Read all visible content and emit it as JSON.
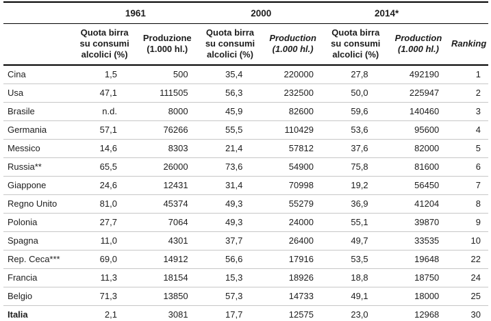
{
  "table": {
    "year_groups": [
      {
        "label": "1961"
      },
      {
        "label": "2000"
      },
      {
        "label": "2014*"
      }
    ],
    "columns": [
      {
        "label": "Quota birra su consumi alcolici (%)",
        "italic": false
      },
      {
        "label": "Produzione (1.000 hl.)",
        "italic": false
      },
      {
        "label": "Quota birra su consumi alcolici (%)",
        "italic": false
      },
      {
        "label": "Production (1.000 hl.)",
        "italic": true
      },
      {
        "label": "Quota birra su consumi alcolici (%)",
        "italic": false
      },
      {
        "label": "Production (1.000 hl.)",
        "italic": true
      },
      {
        "label": "Ranking",
        "italic": true
      }
    ],
    "rows": [
      {
        "country": "Cina",
        "bold": false,
        "values": [
          "1,5",
          "500",
          "35,4",
          "220000",
          "27,8",
          "492190",
          "1"
        ]
      },
      {
        "country": "Usa",
        "bold": false,
        "values": [
          "47,1",
          "111505",
          "56,3",
          "232500",
          "50,0",
          "225947",
          "2"
        ]
      },
      {
        "country": "Brasile",
        "bold": false,
        "values": [
          "n.d.",
          "8000",
          "45,9",
          "82600",
          "59,6",
          "140460",
          "3"
        ]
      },
      {
        "country": "Germania",
        "bold": false,
        "values": [
          "57,1",
          "76266",
          "55,5",
          "110429",
          "53,6",
          "95600",
          "4"
        ]
      },
      {
        "country": "Messico",
        "bold": false,
        "values": [
          "14,6",
          "8303",
          "21,4",
          "57812",
          "37,6",
          "82000",
          "5"
        ]
      },
      {
        "country": "Russia**",
        "bold": false,
        "values": [
          "65,5",
          "26000",
          "73,6",
          "54900",
          "75,8",
          "81600",
          "6"
        ]
      },
      {
        "country": "Giappone",
        "bold": false,
        "values": [
          "24,6",
          "12431",
          "31,4",
          "70998",
          "19,2",
          "56450",
          "7"
        ]
      },
      {
        "country": "Regno Unito",
        "bold": false,
        "values": [
          "81,0",
          "45374",
          "49,3",
          "55279",
          "36,9",
          "41204",
          "8"
        ]
      },
      {
        "country": "Polonia",
        "bold": false,
        "values": [
          "27,7",
          "7064",
          "49,3",
          "24000",
          "55,1",
          "39870",
          "9"
        ]
      },
      {
        "country": "Spagna",
        "bold": false,
        "values": [
          "11,0",
          "4301",
          "37,7",
          "26400",
          "49,7",
          "33535",
          "10"
        ]
      },
      {
        "country": "Rep. Ceca***",
        "bold": false,
        "values": [
          "69,0",
          "14912",
          "56,6",
          "17916",
          "53,5",
          "19648",
          "22"
        ]
      },
      {
        "country": "Francia",
        "bold": false,
        "values": [
          "11,3",
          "18154",
          "15,3",
          "18926",
          "18,8",
          "18750",
          "24"
        ]
      },
      {
        "country": "Belgio",
        "bold": false,
        "values": [
          "71,3",
          "13850",
          "57,3",
          "14733",
          "49,1",
          "18000",
          "25"
        ]
      },
      {
        "country": "Italia",
        "bold": true,
        "values": [
          "2,1",
          "3081",
          "17,7",
          "12575",
          "23,0",
          "12968",
          "30"
        ]
      }
    ]
  }
}
